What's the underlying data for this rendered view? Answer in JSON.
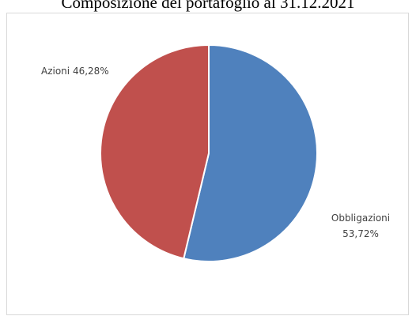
{
  "chart_data": {
    "type": "pie",
    "title": "Composizione del portafoglio al 31.12.2021",
    "slices": [
      {
        "label": "Obbligazioni",
        "value_label": "53,72%",
        "value": 53.72,
        "color": "#4f81bd"
      },
      {
        "label": "Azioni",
        "value_label": "46,28%",
        "value": 46.28,
        "color": "#c0504d"
      }
    ],
    "legend": "none"
  }
}
